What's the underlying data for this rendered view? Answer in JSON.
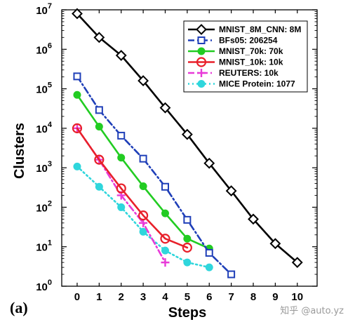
{
  "chart_data": {
    "type": "line",
    "title": "",
    "xlabel": "Steps",
    "ylabel": "Clusters",
    "panel_label": "(a)",
    "x_ticks": [
      0,
      1,
      2,
      3,
      4,
      5,
      6,
      7,
      8,
      9,
      10
    ],
    "xlim": [
      -0.7,
      10.9
    ],
    "ylim": [
      1,
      10000000
    ],
    "y_scale": "log",
    "y_ticks": [
      {
        "value": 1,
        "base": "10",
        "exp": "0"
      },
      {
        "value": 10,
        "base": "10",
        "exp": "1"
      },
      {
        "value": 100,
        "base": "10",
        "exp": "2"
      },
      {
        "value": 1000,
        "base": "10",
        "exp": "3"
      },
      {
        "value": 10000,
        "base": "10",
        "exp": "4"
      },
      {
        "value": 100000,
        "base": "10",
        "exp": "5"
      },
      {
        "value": 1000000,
        "base": "10",
        "exp": "6"
      },
      {
        "value": 10000000,
        "base": "10",
        "exp": "7"
      }
    ],
    "grid": false,
    "legend_position": "top-right",
    "series": [
      {
        "name": "MNIST_8M_CNN: 8M",
        "color": "#000000",
        "marker": "diamond",
        "dash": "solid",
        "x": [
          0,
          1,
          2,
          3,
          4,
          5,
          6,
          7,
          8,
          9,
          10
        ],
        "y": [
          8000000,
          2000000,
          700000,
          160000,
          33000,
          7000,
          1300,
          260,
          50,
          12,
          4
        ]
      },
      {
        "name": "BFs05: 206254",
        "color": "#1f3fb8",
        "marker": "square",
        "dash": "dashdot",
        "x": [
          0,
          1,
          2,
          3,
          4,
          5,
          6,
          7
        ],
        "y": [
          206254,
          29000,
          6500,
          1700,
          330,
          48,
          7,
          2
        ]
      },
      {
        "name": "MNIST_70k: 70k",
        "color": "#22cc22",
        "marker": "circle-filled",
        "dash": "solid",
        "x": [
          0,
          1,
          2,
          3,
          4,
          5,
          6
        ],
        "y": [
          70000,
          11000,
          1800,
          340,
          70,
          16,
          9
        ]
      },
      {
        "name": "MNIST_10k: 10k",
        "color": "#e8202a",
        "marker": "circle-open",
        "dash": "solid",
        "x": [
          0,
          1,
          2,
          3,
          4,
          5
        ],
        "y": [
          10000,
          1600,
          300,
          62,
          16,
          9.5
        ]
      },
      {
        "name": "REUTERS: 10k",
        "color": "#e83ad8",
        "marker": "plus",
        "dash": "dashdot",
        "x": [
          0,
          1,
          2,
          3,
          4
        ],
        "y": [
          10000,
          1600,
          200,
          40,
          4
        ]
      },
      {
        "name": "MICE Protein: 1077",
        "color": "#2fd6dc",
        "marker": "circle-filled",
        "dash": "dotted",
        "x": [
          0,
          1,
          2,
          3,
          4,
          5,
          6
        ],
        "y": [
          1077,
          330,
          100,
          24,
          8,
          4,
          3
        ]
      }
    ]
  },
  "watermark": "知乎 @auto.yz"
}
